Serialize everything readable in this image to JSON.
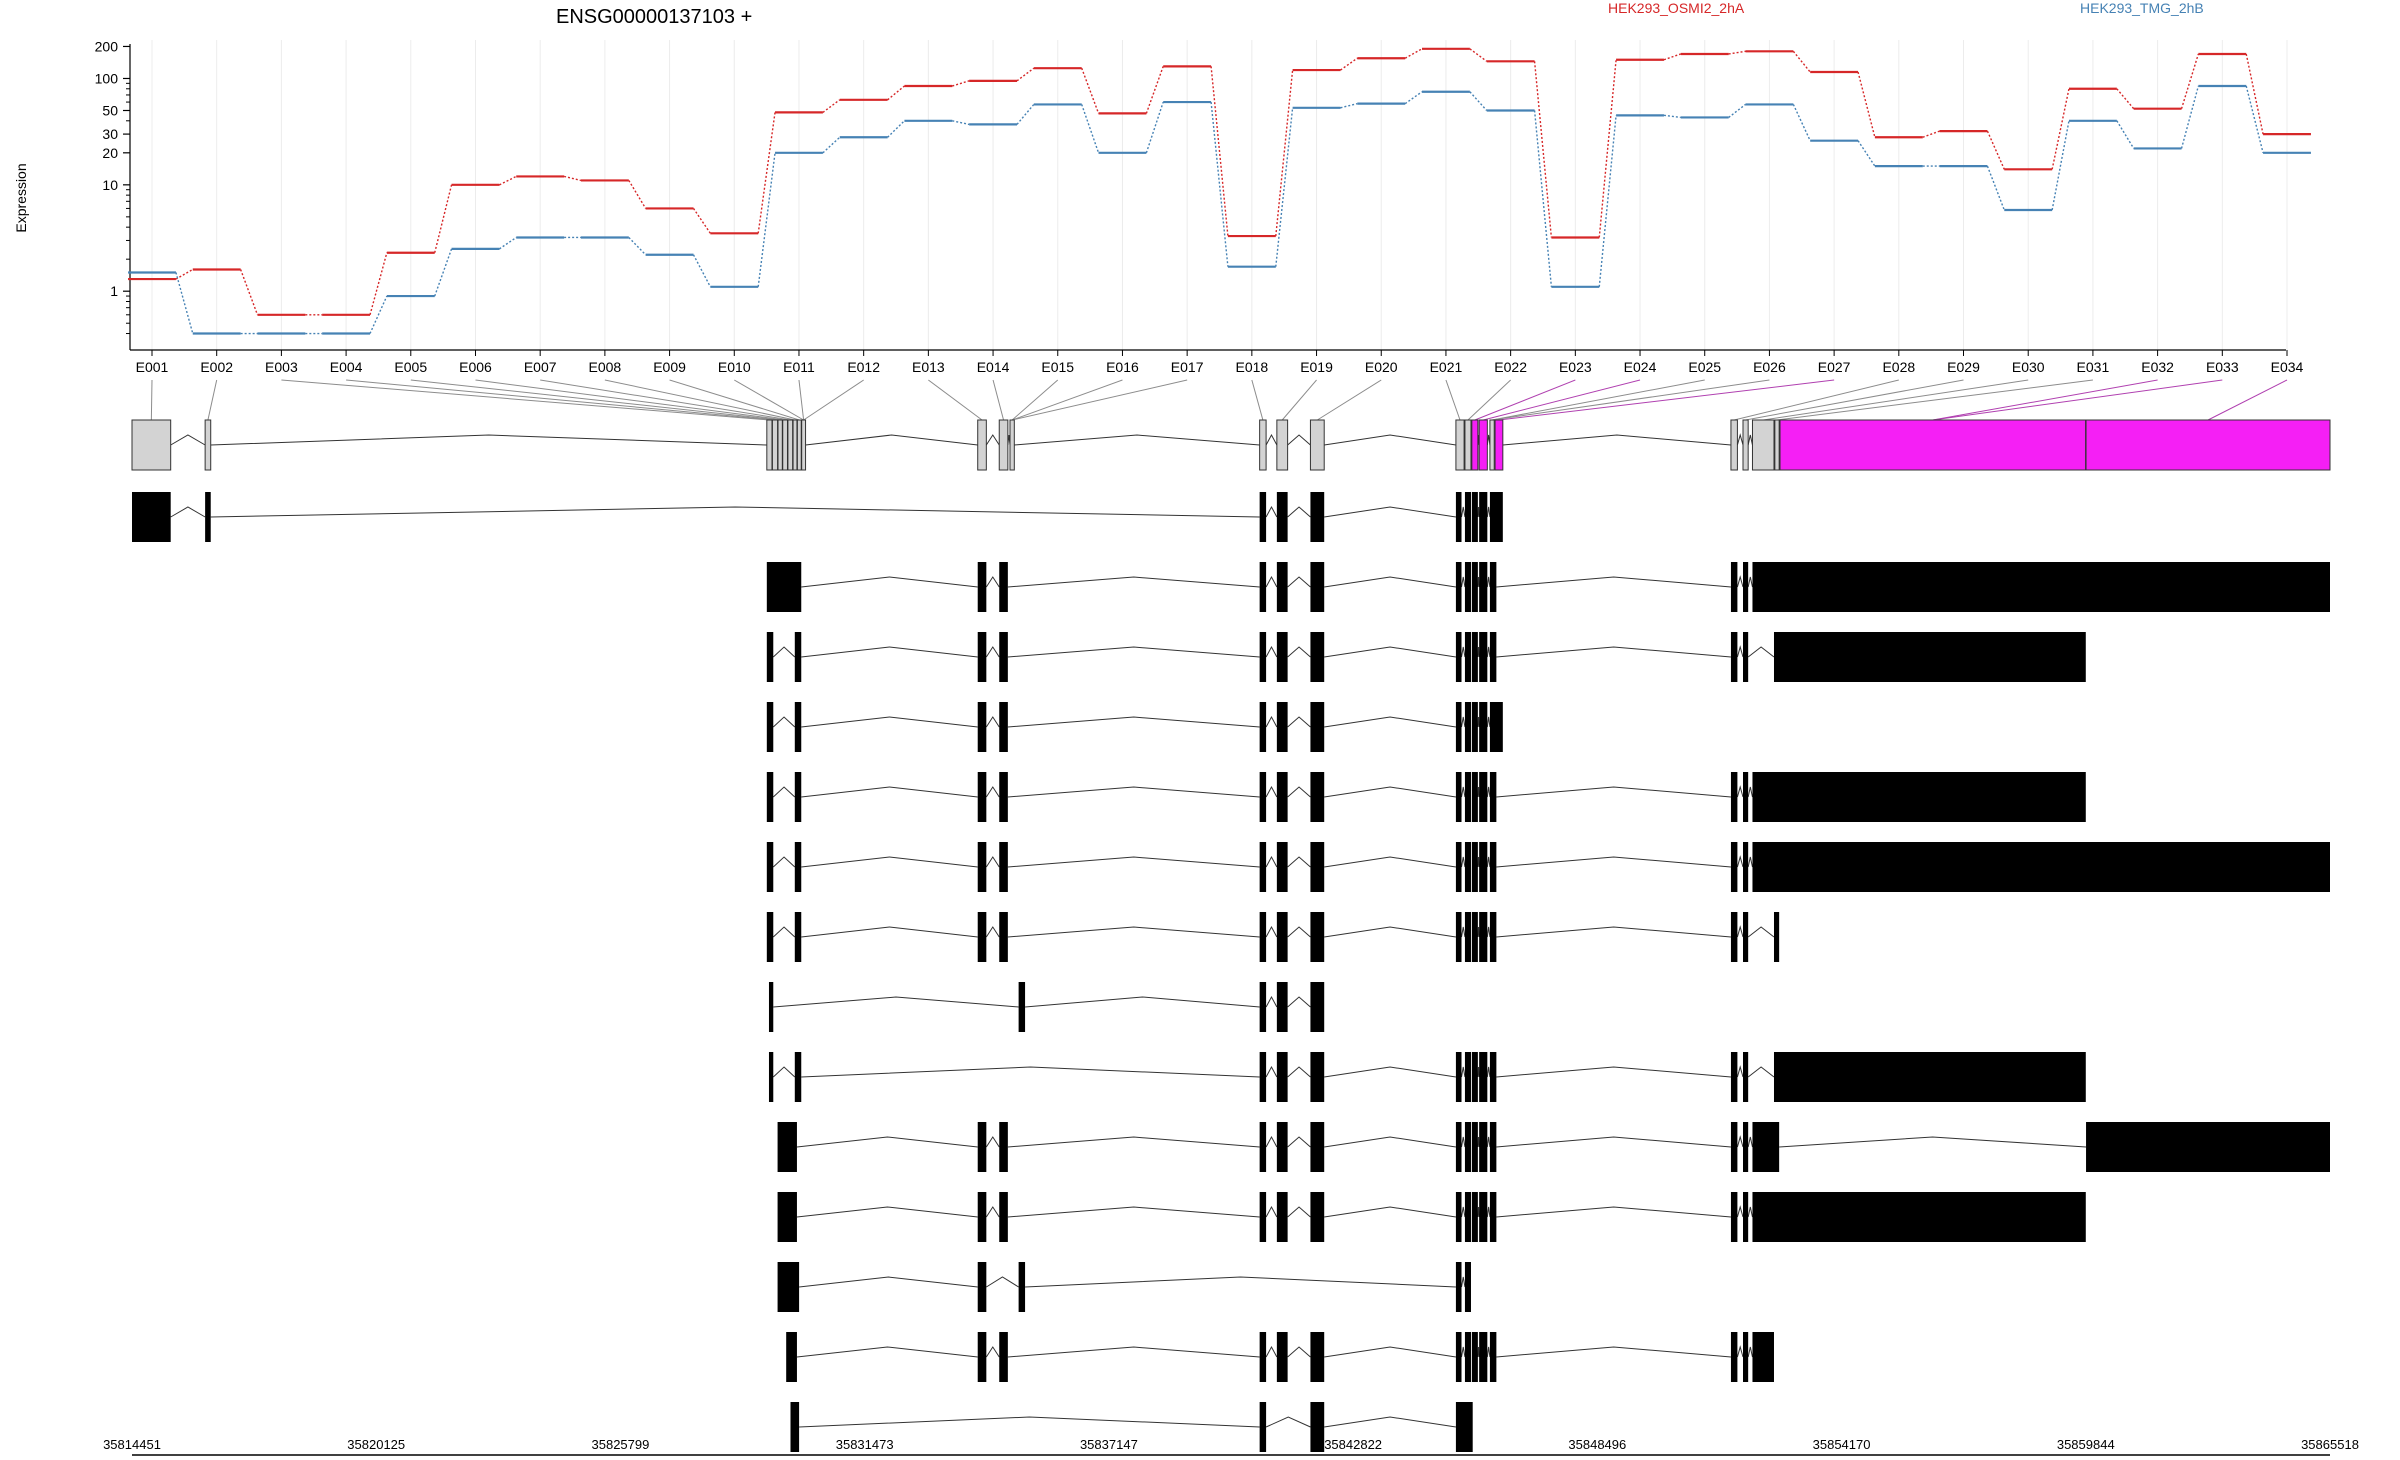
{
  "chart_data": {
    "type": "line",
    "title": "ENSG00000137103 +",
    "ylabel": "Expression",
    "xlabel": "",
    "y_scale": "log",
    "y_ticks": [
      1,
      10,
      20,
      30,
      50,
      100,
      200
    ],
    "y_tick_labels": [
      "1",
      "10",
      "20",
      "30",
      "50",
      "100",
      "200"
    ],
    "categories": [
      "E001",
      "E002",
      "E003",
      "E004",
      "E005",
      "E006",
      "E007",
      "E008",
      "E009",
      "E010",
      "E011",
      "E012",
      "E013",
      "E014",
      "E015",
      "E016",
      "E017",
      "E018",
      "E019",
      "E020",
      "E021",
      "E022",
      "E023",
      "E024",
      "E025",
      "E026",
      "E027",
      "E028",
      "E029",
      "E030",
      "E031",
      "E032",
      "E033",
      "E034"
    ],
    "series": [
      {
        "name": "HEK293_OSMI2_2hA",
        "color": "#d62728",
        "values": [
          1.3,
          1.6,
          0.6,
          0.6,
          2.3,
          10,
          12,
          11,
          6,
          3.5,
          48,
          63,
          85,
          95,
          125,
          47,
          130,
          3.3,
          120,
          155,
          190,
          145,
          3.2,
          150,
          170,
          180,
          115,
          28,
          32,
          14,
          80,
          52,
          170,
          30
        ]
      },
      {
        "name": "HEK293_TMG_2hB",
        "color": "#4682b4",
        "values": [
          1.5,
          0.4,
          0.4,
          0.4,
          0.9,
          2.5,
          3.2,
          3.2,
          2.2,
          1.1,
          20,
          28,
          40,
          37,
          57,
          20,
          60,
          1.7,
          53,
          58,
          75,
          50,
          1.1,
          45,
          43,
          57,
          26,
          15,
          15,
          5.8,
          40,
          22,
          85,
          20
        ]
      }
    ],
    "legend": "top",
    "exon_model": {
      "start": 35814451,
      "end": 35865518,
      "x_tick_labels": [
        "35814451",
        "35820125",
        "35825799",
        "35831473",
        "35837147",
        "35842822",
        "35848496",
        "35854170",
        "35859844",
        "35865518"
      ],
      "exons": [
        [
          35814451,
          35815350,
          "gray"
        ],
        [
          35816150,
          35816280,
          "gray"
        ],
        [
          35829200,
          35829320,
          "gray"
        ],
        [
          35829330,
          35829450,
          "gray"
        ],
        [
          35829460,
          35829560,
          "gray"
        ],
        [
          35829570,
          35829680,
          "gray"
        ],
        [
          35829690,
          35829800,
          "gray"
        ],
        [
          35829810,
          35829900,
          "gray"
        ],
        [
          35829910,
          35830000,
          "gray"
        ],
        [
          35830010,
          35830100,
          "gray"
        ],
        [
          35834100,
          35834300,
          "gray"
        ],
        [
          35834600,
          35834800,
          "gray"
        ],
        [
          35834850,
          35834950,
          "gray"
        ],
        [
          35840650,
          35840800,
          "gray"
        ],
        [
          35841050,
          35841300,
          "gray"
        ],
        [
          35841830,
          35842150,
          "gray"
        ],
        [
          35845210,
          35845400,
          "gray"
        ],
        [
          35845420,
          35845560,
          "gray"
        ],
        [
          35845580,
          35845720,
          "magenta"
        ],
        [
          35845750,
          35845940,
          "magenta"
        ],
        [
          35846000,
          35846100,
          "gray"
        ],
        [
          35846120,
          35846300,
          "magenta"
        ],
        [
          35851600,
          35851750,
          "gray"
        ],
        [
          35851880,
          35852000,
          "gray"
        ],
        [
          35852100,
          35852600,
          "gray"
        ],
        [
          35852620,
          35852720,
          "gray"
        ],
        [
          35852740,
          35859840,
          "magenta"
        ],
        [
          35859850,
          35865518,
          "magenta"
        ]
      ],
      "transcripts": [
        [
          [
            35814451,
            35815350
          ],
          [
            35816150,
            35816280
          ],
          [
            35840650,
            35840800
          ],
          [
            35841050,
            35841300
          ],
          [
            35841830,
            35842150
          ],
          [
            35845210,
            35845340
          ],
          [
            35845420,
            35845560
          ],
          [
            35845580,
            35845720
          ],
          [
            35845750,
            35845940
          ],
          [
            35846000,
            35846300
          ]
        ],
        [
          [
            35829200,
            35830000
          ],
          [
            35834100,
            35834300
          ],
          [
            35834600,
            35834800
          ],
          [
            35840650,
            35840800
          ],
          [
            35841050,
            35841300
          ],
          [
            35841830,
            35842150
          ],
          [
            35845210,
            35845340
          ],
          [
            35845420,
            35845560
          ],
          [
            35845580,
            35845720
          ],
          [
            35845750,
            35845940
          ],
          [
            35846000,
            35846150
          ],
          [
            35851600,
            35851750
          ],
          [
            35851880,
            35852000
          ],
          [
            35852100,
            35865518
          ]
        ],
        [
          [
            35829200,
            35829350
          ],
          [
            35829850,
            35830000
          ],
          [
            35834100,
            35834300
          ],
          [
            35834600,
            35834800
          ],
          [
            35840650,
            35840800
          ],
          [
            35841050,
            35841300
          ],
          [
            35841830,
            35842150
          ],
          [
            35845210,
            35845340
          ],
          [
            35845420,
            35845560
          ],
          [
            35845580,
            35845720
          ],
          [
            35845750,
            35845940
          ],
          [
            35846000,
            35846150
          ],
          [
            35851600,
            35851750
          ],
          [
            35851880,
            35852000
          ],
          [
            35852600,
            35859844
          ]
        ],
        [
          [
            35829200,
            35829350
          ],
          [
            35829850,
            35830000
          ],
          [
            35834100,
            35834300
          ],
          [
            35834600,
            35834800
          ],
          [
            35840650,
            35840800
          ],
          [
            35841050,
            35841300
          ],
          [
            35841830,
            35842150
          ],
          [
            35845210,
            35845340
          ],
          [
            35845420,
            35845560
          ],
          [
            35845580,
            35845720
          ],
          [
            35845750,
            35845940
          ],
          [
            35846000,
            35846300
          ]
        ],
        [
          [
            35829200,
            35829350
          ],
          [
            35829850,
            35830000
          ],
          [
            35834100,
            35834300
          ],
          [
            35834600,
            35834800
          ],
          [
            35840650,
            35840800
          ],
          [
            35841050,
            35841300
          ],
          [
            35841830,
            35842150
          ],
          [
            35845210,
            35845340
          ],
          [
            35845420,
            35845560
          ],
          [
            35845580,
            35845720
          ],
          [
            35845750,
            35845940
          ],
          [
            35846000,
            35846150
          ],
          [
            35851600,
            35851750
          ],
          [
            35851880,
            35852000
          ],
          [
            35852100,
            35859844
          ]
        ],
        [
          [
            35829200,
            35829350
          ],
          [
            35829850,
            35830000
          ],
          [
            35834100,
            35834300
          ],
          [
            35834600,
            35834800
          ],
          [
            35840650,
            35840800
          ],
          [
            35841050,
            35841300
          ],
          [
            35841830,
            35842150
          ],
          [
            35845210,
            35845340
          ],
          [
            35845420,
            35845560
          ],
          [
            35845580,
            35845720
          ],
          [
            35845750,
            35845940
          ],
          [
            35846000,
            35846150
          ],
          [
            35851600,
            35851750
          ],
          [
            35851880,
            35852000
          ],
          [
            35852100,
            35865518
          ]
        ],
        [
          [
            35829200,
            35829350
          ],
          [
            35829850,
            35830000
          ],
          [
            35834100,
            35834300
          ],
          [
            35834600,
            35834800
          ],
          [
            35840650,
            35840800
          ],
          [
            35841050,
            35841300
          ],
          [
            35841830,
            35842150
          ],
          [
            35845210,
            35845340
          ],
          [
            35845420,
            35845560
          ],
          [
            35845580,
            35845720
          ],
          [
            35845750,
            35845940
          ],
          [
            35846000,
            35846150
          ],
          [
            35851600,
            35851750
          ],
          [
            35851880,
            35852000
          ],
          [
            35852600,
            35852720
          ]
        ],
        [
          [
            35829250,
            35829350
          ],
          [
            35835050,
            35835200
          ],
          [
            35840650,
            35840800
          ],
          [
            35841050,
            35841300
          ],
          [
            35841830,
            35842150
          ]
        ],
        [
          [
            35829250,
            35829350
          ],
          [
            35829850,
            35830000
          ],
          [
            35840650,
            35840800
          ],
          [
            35841050,
            35841300
          ],
          [
            35841830,
            35842150
          ],
          [
            35845210,
            35845340
          ],
          [
            35845420,
            35845560
          ],
          [
            35845580,
            35845720
          ],
          [
            35845750,
            35845940
          ],
          [
            35846000,
            35846150
          ],
          [
            35851600,
            35851750
          ],
          [
            35851880,
            35852000
          ],
          [
            35852600,
            35859844
          ]
        ],
        [
          [
            35829450,
            35829900
          ],
          [
            35834100,
            35834300
          ],
          [
            35834600,
            35834800
          ],
          [
            35840650,
            35840800
          ],
          [
            35841050,
            35841300
          ],
          [
            35841830,
            35842150
          ],
          [
            35845210,
            35845340
          ],
          [
            35845420,
            35845560
          ],
          [
            35845580,
            35845720
          ],
          [
            35845750,
            35845940
          ],
          [
            35846000,
            35846150
          ],
          [
            35851600,
            35851750
          ],
          [
            35851880,
            35852000
          ],
          [
            35852100,
            35852720
          ],
          [
            35859850,
            35865518
          ]
        ],
        [
          [
            35829450,
            35829900
          ],
          [
            35834100,
            35834300
          ],
          [
            35834600,
            35834800
          ],
          [
            35840650,
            35840800
          ],
          [
            35841050,
            35841300
          ],
          [
            35841830,
            35842150
          ],
          [
            35845210,
            35845340
          ],
          [
            35845420,
            35845560
          ],
          [
            35845580,
            35845720
          ],
          [
            35845750,
            35845940
          ],
          [
            35846000,
            35846150
          ],
          [
            35851600,
            35851750
          ],
          [
            35851880,
            35852000
          ],
          [
            35852100,
            35859844
          ]
        ],
        [
          [
            35829450,
            35829950
          ],
          [
            35834100,
            35834300
          ],
          [
            35835050,
            35835200
          ],
          [
            35845210,
            35845340
          ],
          [
            35845420,
            35845560
          ]
        ],
        [
          [
            35829650,
            35829900
          ],
          [
            35834100,
            35834300
          ],
          [
            35834600,
            35834800
          ],
          [
            35840650,
            35840800
          ],
          [
            35841050,
            35841300
          ],
          [
            35841830,
            35842150
          ],
          [
            35845210,
            35845340
          ],
          [
            35845420,
            35845560
          ],
          [
            35845580,
            35845720
          ],
          [
            35845750,
            35845940
          ],
          [
            35846000,
            35846150
          ],
          [
            35851600,
            35851750
          ],
          [
            35851880,
            35852000
          ],
          [
            35852100,
            35852600
          ]
        ],
        [
          [
            35829750,
            35829950
          ],
          [
            35840650,
            35840800
          ],
          [
            35841830,
            35842150
          ],
          [
            35845210,
            35845600
          ]
        ]
      ]
    }
  }
}
